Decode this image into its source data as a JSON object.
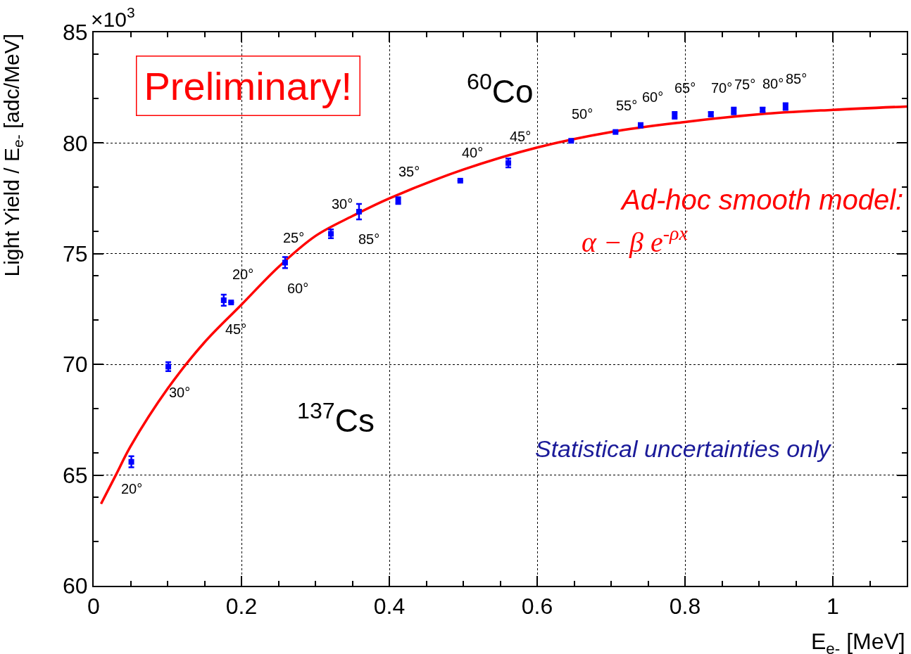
{
  "chart_data": {
    "type": "scatter",
    "xlabel": "E$_{e-}$ [MeV]",
    "ylabel": "Light Yield / E$_{e-}$ [adc/MeV]",
    "xlim": [
      0,
      1.1
    ],
    "xticks": [
      0,
      0.2,
      0.4,
      0.6,
      0.8,
      1
    ],
    "ylim": [
      60,
      85
    ],
    "yticks": [
      60,
      65,
      70,
      75,
      80,
      85
    ],
    "grid": true,
    "series": [
      {
        "color": "#0000ff",
        "marker": "square",
        "x": [
          0.051,
          0.101,
          0.176,
          0.186,
          0.259,
          0.321,
          0.359,
          0.412,
          0.496,
          0.561,
          0.646,
          0.706,
          0.74,
          0.786,
          0.835,
          0.866,
          0.905,
          0.936
        ],
        "values": [
          65.6,
          69.9,
          72.9,
          72.8,
          74.6,
          75.9,
          76.9,
          77.4,
          78.3,
          79.1,
          80.1,
          80.5,
          80.8,
          81.25,
          81.3,
          81.45,
          81.5,
          81.65
        ],
        "errors": [
          0.25,
          0.2,
          0.25,
          null,
          0.25,
          0.2,
          0.35,
          0.15,
          null,
          0.2,
          null,
          null,
          0.1,
          0.15,
          0.1,
          0.15,
          0.1,
          0.15
        ]
      },
      {
        "type": "line",
        "color": "#ff0000",
        "x": [
          0.01,
          0.03,
          0.05,
          0.1,
          0.15,
          0.2,
          0.25,
          0.3,
          0.35,
          0.4,
          0.5,
          0.6,
          0.7,
          0.8,
          0.9,
          1.0,
          1.1
        ],
        "values": [
          63.7,
          65.0,
          66.3,
          68.9,
          71.0,
          72.7,
          74.4,
          75.8,
          76.7,
          77.5,
          78.8,
          79.8,
          80.5,
          80.95,
          81.3,
          81.5,
          81.65
        ]
      }
    ],
    "annotations": [
      "×10$^{3}$",
      "Preliminary!",
      "$^{60}$Co",
      "$^{137}$Cs",
      "Ad-hoc smooth model:",
      "α − β e$^{-ρx}$",
      "Statistical uncertainties only",
      {
        "text": "20°",
        "x": 0.051,
        "y": 65.6
      },
      {
        "text": "30°",
        "x": 0.101,
        "y": 69.9
      },
      {
        "text": "45°",
        "x": 0.186,
        "y": 72.8
      },
      {
        "text": "20°",
        "x": 0.176,
        "y": 72.9
      },
      {
        "text": "60°",
        "x": 0.259,
        "y": 74.6
      },
      {
        "text": "25°",
        "x": 0.259,
        "y": 74.6
      },
      {
        "text": "30°",
        "x": 0.359,
        "y": 76.9
      },
      {
        "text": "85°",
        "x": 0.359,
        "y": 76.9
      },
      {
        "text": "35°",
        "x": 0.412,
        "y": 77.4
      },
      {
        "text": "40°",
        "x": 0.496,
        "y": 78.3
      },
      {
        "text": "45°",
        "x": 0.561,
        "y": 79.1
      },
      {
        "text": "50°",
        "x": 0.646,
        "y": 80.1
      },
      {
        "text": "55°",
        "x": 0.706,
        "y": 80.5
      },
      {
        "text": "60°",
        "x": 0.74,
        "y": 80.8
      },
      {
        "text": "65°",
        "x": 0.786,
        "y": 81.25
      },
      {
        "text": "70°",
        "x": 0.835,
        "y": 81.3
      },
      {
        "text": "75°",
        "x": 0.866,
        "y": 81.45
      },
      {
        "text": "80°",
        "x": 0.905,
        "y": 81.5
      },
      {
        "text": "85°",
        "x": 0.936,
        "y": 81.65
      }
    ]
  }
}
